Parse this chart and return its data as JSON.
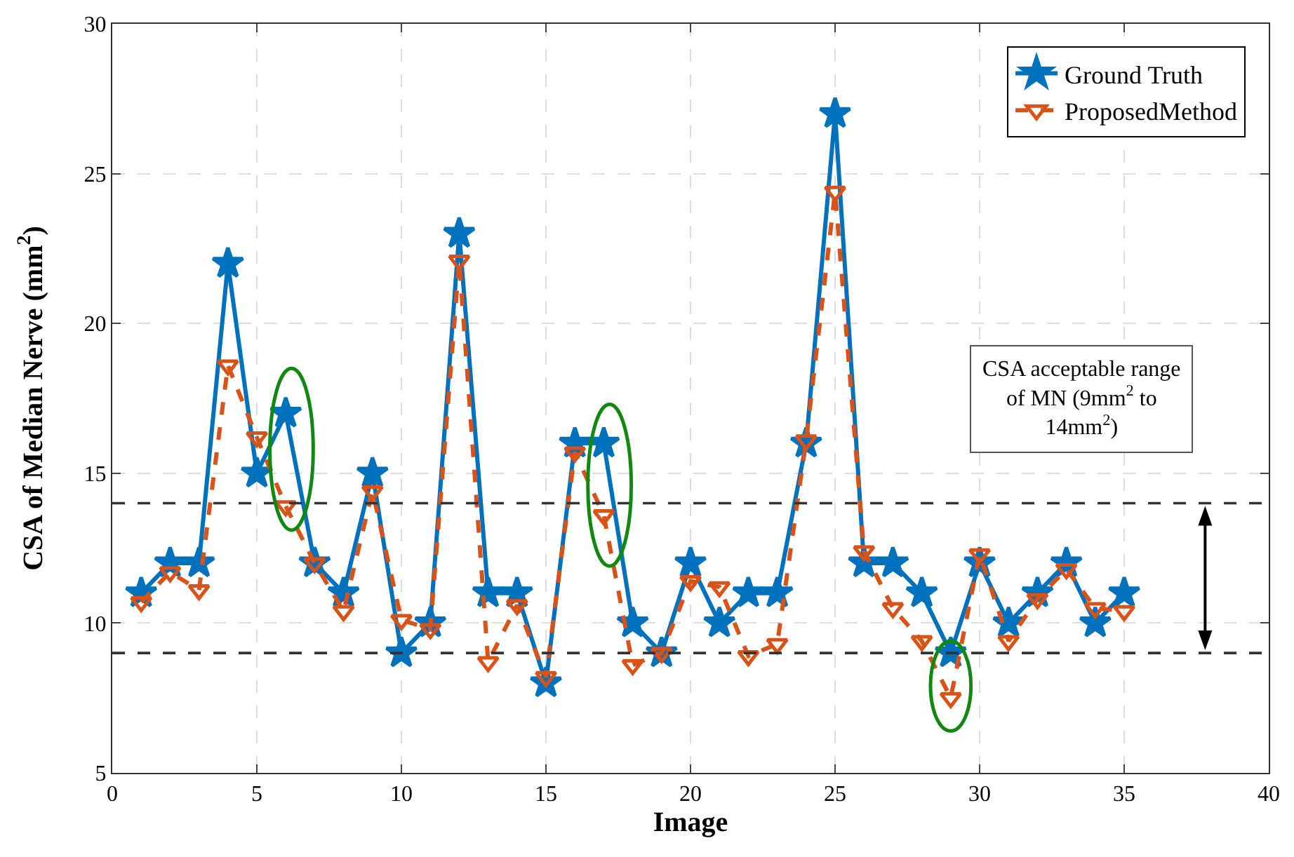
{
  "chart_data": {
    "type": "line",
    "xlabel": "Image",
    "ylabel": "CSA of Median Nerve (mm$^{2}$)",
    "x": [
      1,
      2,
      3,
      4,
      5,
      6,
      7,
      8,
      9,
      10,
      11,
      12,
      13,
      14,
      15,
      16,
      17,
      18,
      19,
      20,
      21,
      22,
      23,
      24,
      25,
      26,
      27,
      28,
      29,
      30,
      31,
      32,
      33,
      34,
      35
    ],
    "series": [
      {
        "name": "Ground Truth",
        "color": "#0072bd",
        "marker": "star",
        "line_style": "solid",
        "values": [
          11,
          12,
          12,
          22,
          15,
          17,
          12,
          11,
          15,
          9,
          10,
          23,
          11,
          11,
          8,
          16,
          16,
          10,
          9,
          12,
          10,
          11,
          11,
          16,
          27,
          12,
          12,
          11,
          9,
          12,
          10,
          11,
          12,
          10,
          11
        ]
      },
      {
        "name": "ProposedMethod",
        "color": "#d95319",
        "marker": "triangle",
        "line_style": "dashed",
        "values": [
          10.7,
          11.7,
          11.1,
          18.6,
          16.2,
          13.9,
          12.0,
          10.4,
          14.4,
          10.1,
          9.8,
          22.1,
          8.7,
          10.6,
          8.2,
          15.7,
          13.6,
          8.6,
          9.0,
          11.4,
          11.2,
          8.9,
          9.3,
          16.1,
          24.4,
          12.4,
          10.5,
          9.4,
          7.5,
          12.3,
          9.4,
          10.8,
          11.8,
          10.5,
          10.4
        ]
      }
    ],
    "xlim": [
      0,
      40
    ],
    "xticks": [
      0,
      5,
      10,
      15,
      20,
      25,
      30,
      35,
      40
    ],
    "ylim": [
      5,
      30
    ],
    "yticks": [
      5,
      10,
      15,
      20,
      25,
      30
    ],
    "grid": true,
    "legend": "top right",
    "ref_lines": [
      {
        "axis": "y",
        "value": 14,
        "color": "#333333",
        "line_style": "dashed"
      },
      {
        "axis": "y",
        "value": 9,
        "color": "#333333",
        "line_style": "dashed"
      }
    ],
    "annotations": [
      "CSA acceptable range of MN (9mm$^{2}$ to 14mm$^{2}$)"
    ]
  }
}
